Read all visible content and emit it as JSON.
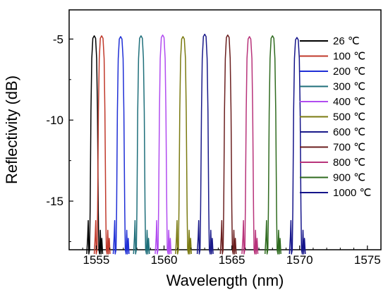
{
  "chart_data": {
    "type": "line",
    "title": "",
    "xlabel": "Wavelength (nm)",
    "ylabel": "Reflectivity (dB)",
    "xlim": [
      1553,
      1576
    ],
    "ylim": [
      -18,
      -3.2
    ],
    "xticks": [
      1555,
      1560,
      1565,
      1570,
      1575
    ],
    "xtick_labels": [
      "1555",
      "1560",
      "1565",
      "1570",
      "1575"
    ],
    "yticks": [
      -5,
      -10,
      -15
    ],
    "ytick_labels": [
      "-5",
      "-10",
      "-15"
    ],
    "grid": false,
    "legend_position": "top-right",
    "series": [
      {
        "name": "26 ℃",
        "color": "#000000",
        "center": 1554.85,
        "peak": -4.8
      },
      {
        "name": "100 ℃",
        "color": "#c0392b",
        "center": 1555.4,
        "peak": -4.8
      },
      {
        "name": "200 ℃",
        "color": "#1f2fd6",
        "center": 1556.8,
        "peak": -4.85
      },
      {
        "name": "300 ℃",
        "color": "#1f6f7a",
        "center": 1558.3,
        "peak": -4.8
      },
      {
        "name": "400 ℃",
        "color": "#b14cf0",
        "center": 1559.9,
        "peak": -4.75
      },
      {
        "name": "500 ℃",
        "color": "#7a7a10",
        "center": 1561.4,
        "peak": -4.85
      },
      {
        "name": "600 ℃",
        "color": "#1a1a8a",
        "center": 1563.0,
        "peak": -4.7
      },
      {
        "name": "700 ℃",
        "color": "#6b1f1f",
        "center": 1564.7,
        "peak": -4.75
      },
      {
        "name": "800 ℃",
        "color": "#b8337a",
        "center": 1566.3,
        "peak": -4.85
      },
      {
        "name": "900 ℃",
        "color": "#2f6b1f",
        "center": 1568.0,
        "peak": -4.8
      },
      {
        "name": "1000 ℃",
        "color": "#14148a",
        "center": 1569.8,
        "peak": -4.9
      }
    ]
  }
}
